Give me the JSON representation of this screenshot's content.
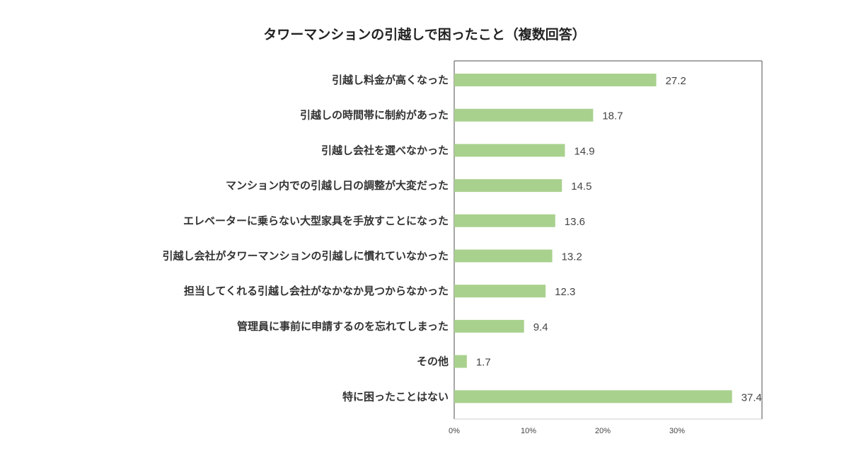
{
  "chart_data": {
    "type": "bar",
    "orientation": "horizontal",
    "title": "タワーマンションの引越しで困ったこと（複数回答）",
    "categories": [
      "引越し料金が高くなった",
      "引越しの時間帯に制約があった",
      "引越し会社を選べなかった",
      "マンション内での引越し日の調整が大変だった",
      "エレベーターに乗らない大型家具を手放すことになった",
      "引越し会社がタワーマンションの引越しに慣れていなかった",
      "担当してくれる引越し会社がなかなか見つからなかった",
      "管理員に事前に申請するのを忘れてしまった",
      "その他",
      "特に困ったことはない"
    ],
    "values": [
      27.2,
      18.7,
      14.9,
      14.5,
      13.6,
      13.2,
      12.3,
      9.4,
      1.7,
      37.4
    ],
    "value_labels": [
      "27.2",
      "18.7",
      "14.9",
      "14.5",
      "13.6",
      "13.2",
      "12.3",
      "9.4",
      "1.7",
      "37.4"
    ],
    "x_ticks": [
      0,
      10,
      20,
      30
    ],
    "x_tick_labels": [
      "0%",
      "10%",
      "20%",
      "30%"
    ],
    "xlim": [
      0,
      41.5
    ],
    "xlabel": "",
    "ylabel": "",
    "bar_color": "#a9d18e",
    "axis_color": "#888888",
    "grid": false,
    "legend": "none"
  }
}
